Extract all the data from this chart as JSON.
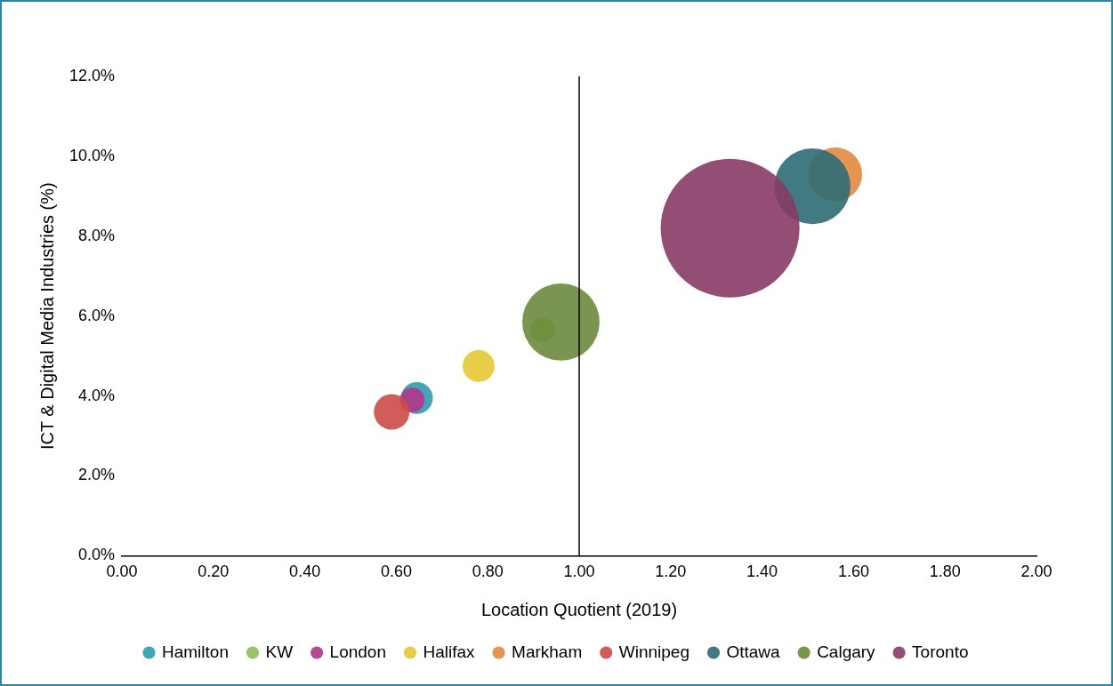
{
  "chart_data": {
    "type": "bubble",
    "xlabel": "Location Quotient (2019)",
    "ylabel": "ICT & Digital Media Industries (%)",
    "xlim": [
      0,
      2
    ],
    "xticks": [
      {
        "value": 0,
        "label": "0.00"
      },
      {
        "value": 0.2,
        "label": "0.20"
      },
      {
        "value": 0.4,
        "label": "0.40"
      },
      {
        "value": 0.6,
        "label": "0.60"
      },
      {
        "value": 0.8,
        "label": "0.80"
      },
      {
        "value": 1,
        "label": "1.00"
      },
      {
        "value": 1.2,
        "label": "1.20"
      },
      {
        "value": 1.4,
        "label": "1.40"
      },
      {
        "value": 1.6,
        "label": "1.60"
      },
      {
        "value": 1.8,
        "label": "1.80"
      },
      {
        "value": 2,
        "label": "2.00"
      }
    ],
    "ylim": [
      0,
      12
    ],
    "yticks": [
      {
        "value": 0,
        "label": "0.0%"
      },
      {
        "value": 2,
        "label": "2.0%"
      },
      {
        "value": 4,
        "label": "4.0%"
      },
      {
        "value": 6,
        "label": "6.0%"
      },
      {
        "value": 8,
        "label": "8.0%"
      },
      {
        "value": 10,
        "label": "10.0%"
      },
      {
        "value": 12,
        "label": "12.0%"
      }
    ],
    "legend": "bottom",
    "marker": "circle",
    "ref_lines": [
      {
        "axis": "x",
        "value": 1,
        "color": "#000000"
      }
    ],
    "series": [
      {
        "name": "Hamilton",
        "color": "#2e9cae",
        "x": [
          0.645
        ],
        "values": [
          3.95
        ],
        "sizes": [
          0.053
        ]
      },
      {
        "name": "KW",
        "color": "#8cbf55",
        "x": [
          0.92
        ],
        "values": [
          5.65
        ],
        "sizes": [
          0.032
        ]
      },
      {
        "name": "London",
        "color": "#b3358a",
        "x": [
          0.635
        ],
        "values": [
          3.9
        ],
        "sizes": [
          0.032
        ]
      },
      {
        "name": "Halifax",
        "color": "#e5c835",
        "x": [
          0.78
        ],
        "values": [
          4.75
        ],
        "sizes": [
          0.053
        ]
      },
      {
        "name": "Markham",
        "color": "#e08a3e",
        "x": [
          1.56
        ],
        "values": [
          9.55
        ],
        "sizes": [
          0.15
        ]
      },
      {
        "name": "Winnipeg",
        "color": "#cc4b48",
        "x": [
          0.59
        ],
        "values": [
          3.6
        ],
        "sizes": [
          0.066
        ]
      },
      {
        "name": "Ottawa",
        "color": "#2e6b74",
        "x": [
          1.51
        ],
        "values": [
          9.25
        ],
        "sizes": [
          0.3
        ]
      },
      {
        "name": "Calgary",
        "color": "#6b8a3c",
        "x": [
          0.96
        ],
        "values": [
          5.85
        ],
        "sizes": [
          0.31
        ]
      },
      {
        "name": "Toronto",
        "color": "#883a65",
        "x": [
          1.33
        ],
        "values": [
          8.2
        ],
        "sizes": [
          1
        ]
      }
    ]
  }
}
